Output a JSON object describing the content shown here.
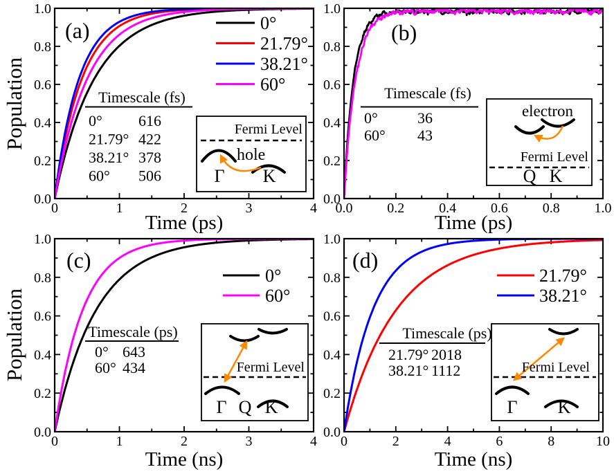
{
  "figure": {
    "background": "#ffffff"
  },
  "colors": {
    "black": "#000000",
    "red": "#ff0000",
    "blue": "#0000ff",
    "magenta": "#ff00ff",
    "orange": "#ff8800",
    "axis": "#000000"
  },
  "chart_data": [
    {
      "id": "a",
      "type": "line",
      "panel_label": "(a)",
      "xlabel": "Time (ps)",
      "ylabel": "Population",
      "xlim": [
        0,
        4
      ],
      "ylim": [
        0,
        1
      ],
      "xticks": {
        "vals": [
          0,
          1,
          2,
          3,
          4
        ],
        "labels": [
          "0",
          "1",
          "2",
          "3",
          "4"
        ]
      },
      "yticks": {
        "vals": [
          0,
          0.2,
          0.4,
          0.6,
          0.8,
          1.0
        ],
        "labels": [
          "0.0",
          "0.2",
          "0.4",
          "0.6",
          "0.8",
          "1.0"
        ]
      },
      "x_minor_step": 0.5,
      "y_minor_step": 0.1,
      "grid": false,
      "legend": true,
      "legend_position": "upper right",
      "series": [
        {
          "name": "0°",
          "color": "#000000",
          "tau": 0.616,
          "sat": 1,
          "noisy": false,
          "seed": 1
        },
        {
          "name": "21.79°",
          "color": "#ff0000",
          "tau": 0.422,
          "sat": 1,
          "noisy": false,
          "seed": 2
        },
        {
          "name": "38.21°",
          "color": "#0000ff",
          "tau": 0.378,
          "sat": 1,
          "noisy": false,
          "seed": 3
        },
        {
          "name": "60°",
          "color": "#ff00ff",
          "tau": 0.506,
          "sat": 1,
          "noisy": false,
          "seed": 4
        }
      ],
      "table": {
        "title": "Timescale (fs)",
        "rows": [
          [
            "0°",
            "616"
          ],
          [
            "21.79°",
            "422"
          ],
          [
            "38.21°",
            "378"
          ],
          [
            "60°",
            "506"
          ]
        ]
      },
      "inset": {
        "fermi_label": "Fermi Level",
        "carrier_label": "hole",
        "k0": "Γ",
        "k1": "K"
      }
    },
    {
      "id": "b",
      "type": "line",
      "panel_label": "(b)",
      "xlabel": "Time (ps)",
      "ylabel": "",
      "xlim": [
        0,
        1
      ],
      "ylim": [
        0,
        1
      ],
      "xticks": {
        "vals": [
          0,
          0.2,
          0.4,
          0.6,
          0.8,
          1.0
        ],
        "labels": [
          "0.0",
          "0.2",
          "0.4",
          "0.6",
          "0.8",
          "1.0"
        ]
      },
      "yticks": {
        "vals": [
          0,
          0.2,
          0.4,
          0.6,
          0.8,
          1.0
        ],
        "labels": [
          "0.0",
          "0.2",
          "0.4",
          "0.6",
          "0.8",
          "1.0"
        ]
      },
      "x_minor_step": 0.1,
      "y_minor_step": 0.1,
      "grid": false,
      "legend": false,
      "legend_position": "none",
      "series": [
        {
          "name": "0°",
          "color": "#000000",
          "tau": 0.036,
          "sat": 0.985,
          "noisy": true,
          "seed": 7
        },
        {
          "name": "60°",
          "color": "#ff00ff",
          "tau": 0.043,
          "sat": 0.985,
          "noisy": true,
          "seed": 99
        }
      ],
      "table": {
        "title": "Timescale (fs)",
        "rows": [
          [
            "0°",
            "36"
          ],
          [
            "60°",
            "43"
          ]
        ]
      },
      "inset": {
        "fermi_label": "Fermi Level",
        "carrier_label": "electron",
        "k0": "Q",
        "k1": "K"
      }
    },
    {
      "id": "c",
      "type": "line",
      "panel_label": "(c)",
      "xlabel": "Time (ns)",
      "ylabel": "Population",
      "xlim": [
        0,
        4
      ],
      "ylim": [
        0,
        1
      ],
      "xticks": {
        "vals": [
          0,
          1,
          2,
          3,
          4
        ],
        "labels": [
          "0",
          "1",
          "2",
          "3",
          "4"
        ]
      },
      "yticks": {
        "vals": [
          0,
          0.2,
          0.4,
          0.6,
          0.8,
          1.0
        ],
        "labels": [
          "0.0",
          "0.2",
          "0.4",
          "0.6",
          "0.8",
          "1.0"
        ]
      },
      "x_minor_step": 0.5,
      "y_minor_step": 0.1,
      "grid": false,
      "legend": true,
      "legend_position": "upper right",
      "series": [
        {
          "name": "0°",
          "color": "#000000",
          "tau": 0.643,
          "sat": 1,
          "noisy": false,
          "seed": 5
        },
        {
          "name": "60°",
          "color": "#ff00ff",
          "tau": 0.434,
          "sat": 1,
          "noisy": false,
          "seed": 6
        }
      ],
      "table": {
        "title": "Timescale (ps)",
        "rows": [
          [
            "0°",
            "643"
          ],
          [
            "60°",
            "434"
          ]
        ]
      },
      "inset": {
        "fermi_label": "Fermi Level",
        "carrier_label": "",
        "k0": "Γ",
        "k1": "Q",
        "k2": "K"
      }
    },
    {
      "id": "d",
      "type": "line",
      "panel_label": "(d)",
      "xlabel": "Time (ns)",
      "ylabel": "",
      "xlim": [
        0,
        10
      ],
      "ylim": [
        0,
        1
      ],
      "xticks": {
        "vals": [
          0,
          2,
          4,
          6,
          8,
          10
        ],
        "labels": [
          "0",
          "2",
          "4",
          "6",
          "8",
          "10"
        ]
      },
      "yticks": {
        "vals": [
          0,
          0.2,
          0.4,
          0.6,
          0.8,
          1.0
        ],
        "labels": [
          "0.0",
          "0.2",
          "0.4",
          "0.6",
          "0.8",
          "1.0"
        ]
      },
      "x_minor_step": 1,
      "y_minor_step": 0.1,
      "grid": false,
      "legend": true,
      "legend_position": "upper right",
      "series": [
        {
          "name": "21.79°",
          "color": "#ff0000",
          "tau": 2.018,
          "sat": 1,
          "noisy": false,
          "seed": 8
        },
        {
          "name": "38.21°",
          "color": "#0000ff",
          "tau": 1.112,
          "sat": 1,
          "noisy": false,
          "seed": 9
        }
      ],
      "table": {
        "title": "Timescale (ps)",
        "rows": [
          [
            "21.79°",
            "2018"
          ],
          [
            "38.21°",
            "1112"
          ]
        ]
      },
      "inset": {
        "fermi_label": "Fermi Level",
        "carrier_label": "",
        "k0": "Γ",
        "k1": "K"
      }
    }
  ]
}
